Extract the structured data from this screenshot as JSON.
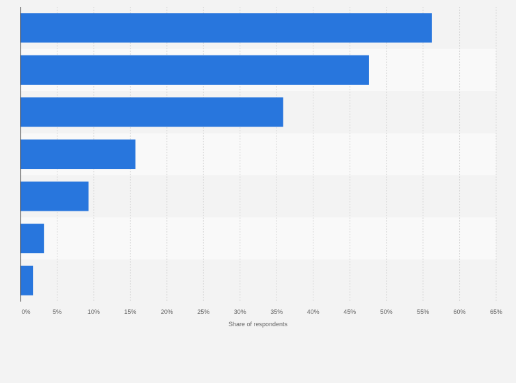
{
  "chart_data": {
    "type": "bar",
    "orientation": "horizontal",
    "categories": [
      "",
      "",
      "",
      "",
      "",
      "",
      ""
    ],
    "values": [
      56.2,
      47.6,
      35.9,
      15.7,
      9.3,
      3.2,
      1.7
    ],
    "title": "",
    "xlabel": "Share of respondents",
    "ylabel": "",
    "xlim": [
      0,
      65
    ],
    "x_ticks": [
      "0%",
      "5%",
      "10%",
      "15%",
      "20%",
      "25%",
      "30%",
      "35%",
      "40%",
      "45%",
      "50%",
      "55%",
      "60%",
      "65%"
    ],
    "grid": true,
    "bar_color": "#2876dd",
    "band_colors": [
      "#f3f3f3",
      "#f9f9f9"
    ]
  }
}
